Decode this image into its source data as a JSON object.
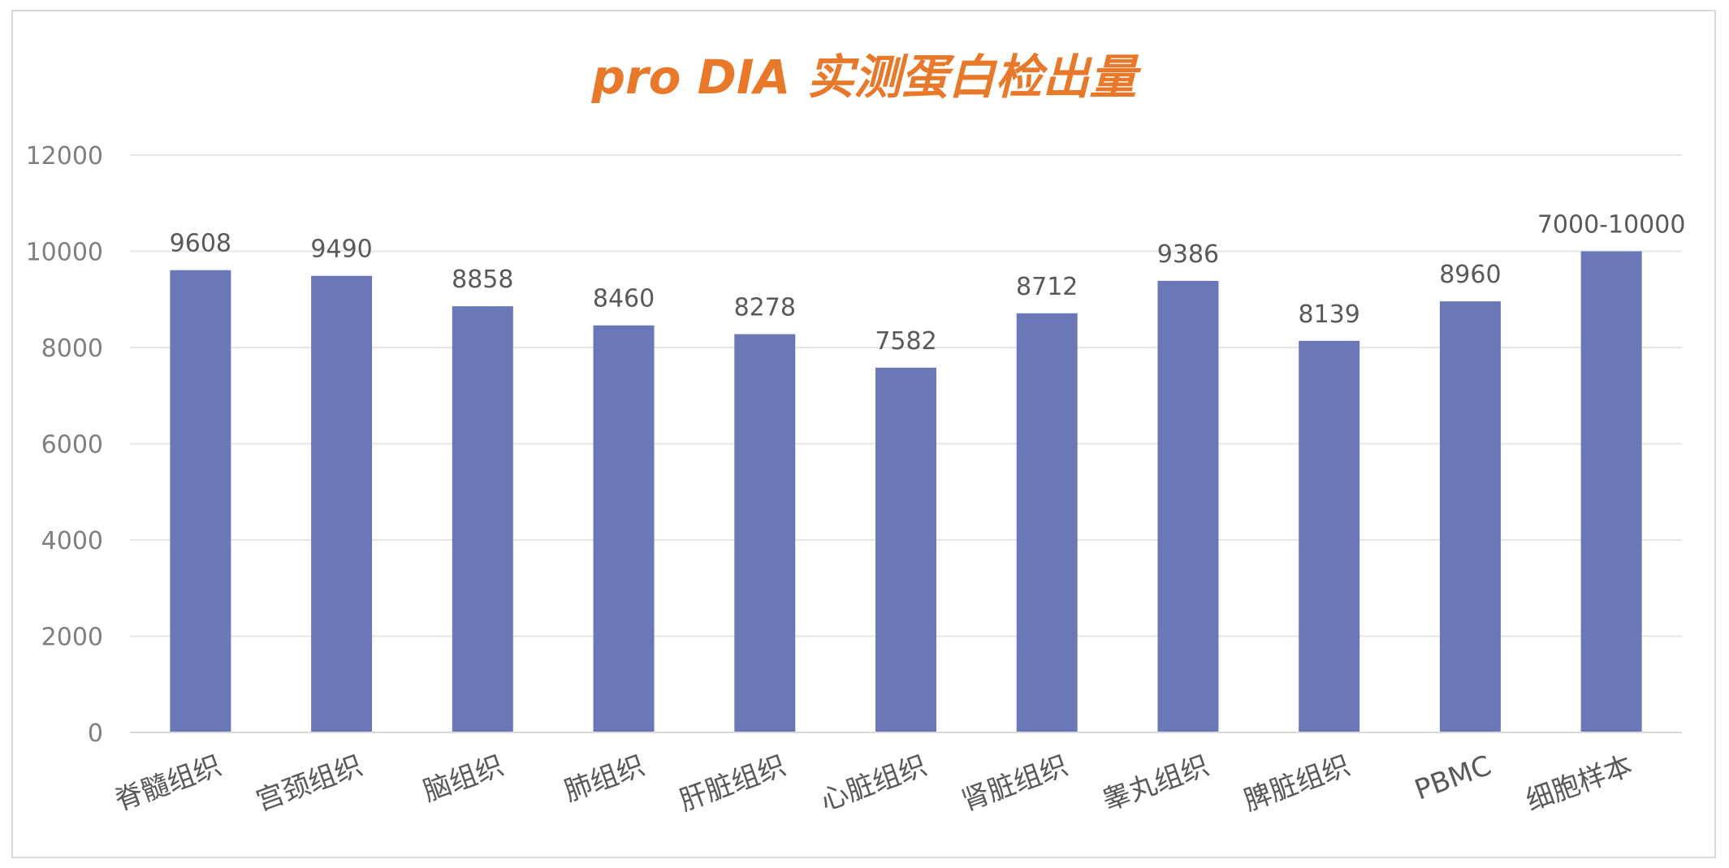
{
  "chart_data": {
    "type": "bar",
    "title": "pro DIA 实测蛋白检出量",
    "xlabel": "",
    "ylabel": "",
    "ylim": [
      0,
      12000
    ],
    "yticks": [
      0,
      2000,
      4000,
      6000,
      8000,
      10000,
      12000
    ],
    "grid": true,
    "legend": "none",
    "categories": [
      "脊髓组织",
      "宫颈组织",
      "脑组织",
      "肺组织",
      "肝脏组织",
      "心脏组织",
      "肾脏组织",
      "睾丸组织",
      "脾脏组织",
      "PBMC",
      "细胞样本"
    ],
    "values": [
      9608,
      9490,
      8858,
      8460,
      8278,
      7582,
      8712,
      9386,
      8139,
      8960,
      10000
    ],
    "data_labels": [
      "9608",
      "9490",
      "8858",
      "8460",
      "8278",
      "7582",
      "8712",
      "9386",
      "8139",
      "8960",
      "7000-10000"
    ],
    "colors": {
      "bar": "#6b78b8",
      "title": "#e8782a",
      "axis_text": "#7f7f7f",
      "grid": "#e6e6e6",
      "border": "#d9d9d9"
    }
  }
}
